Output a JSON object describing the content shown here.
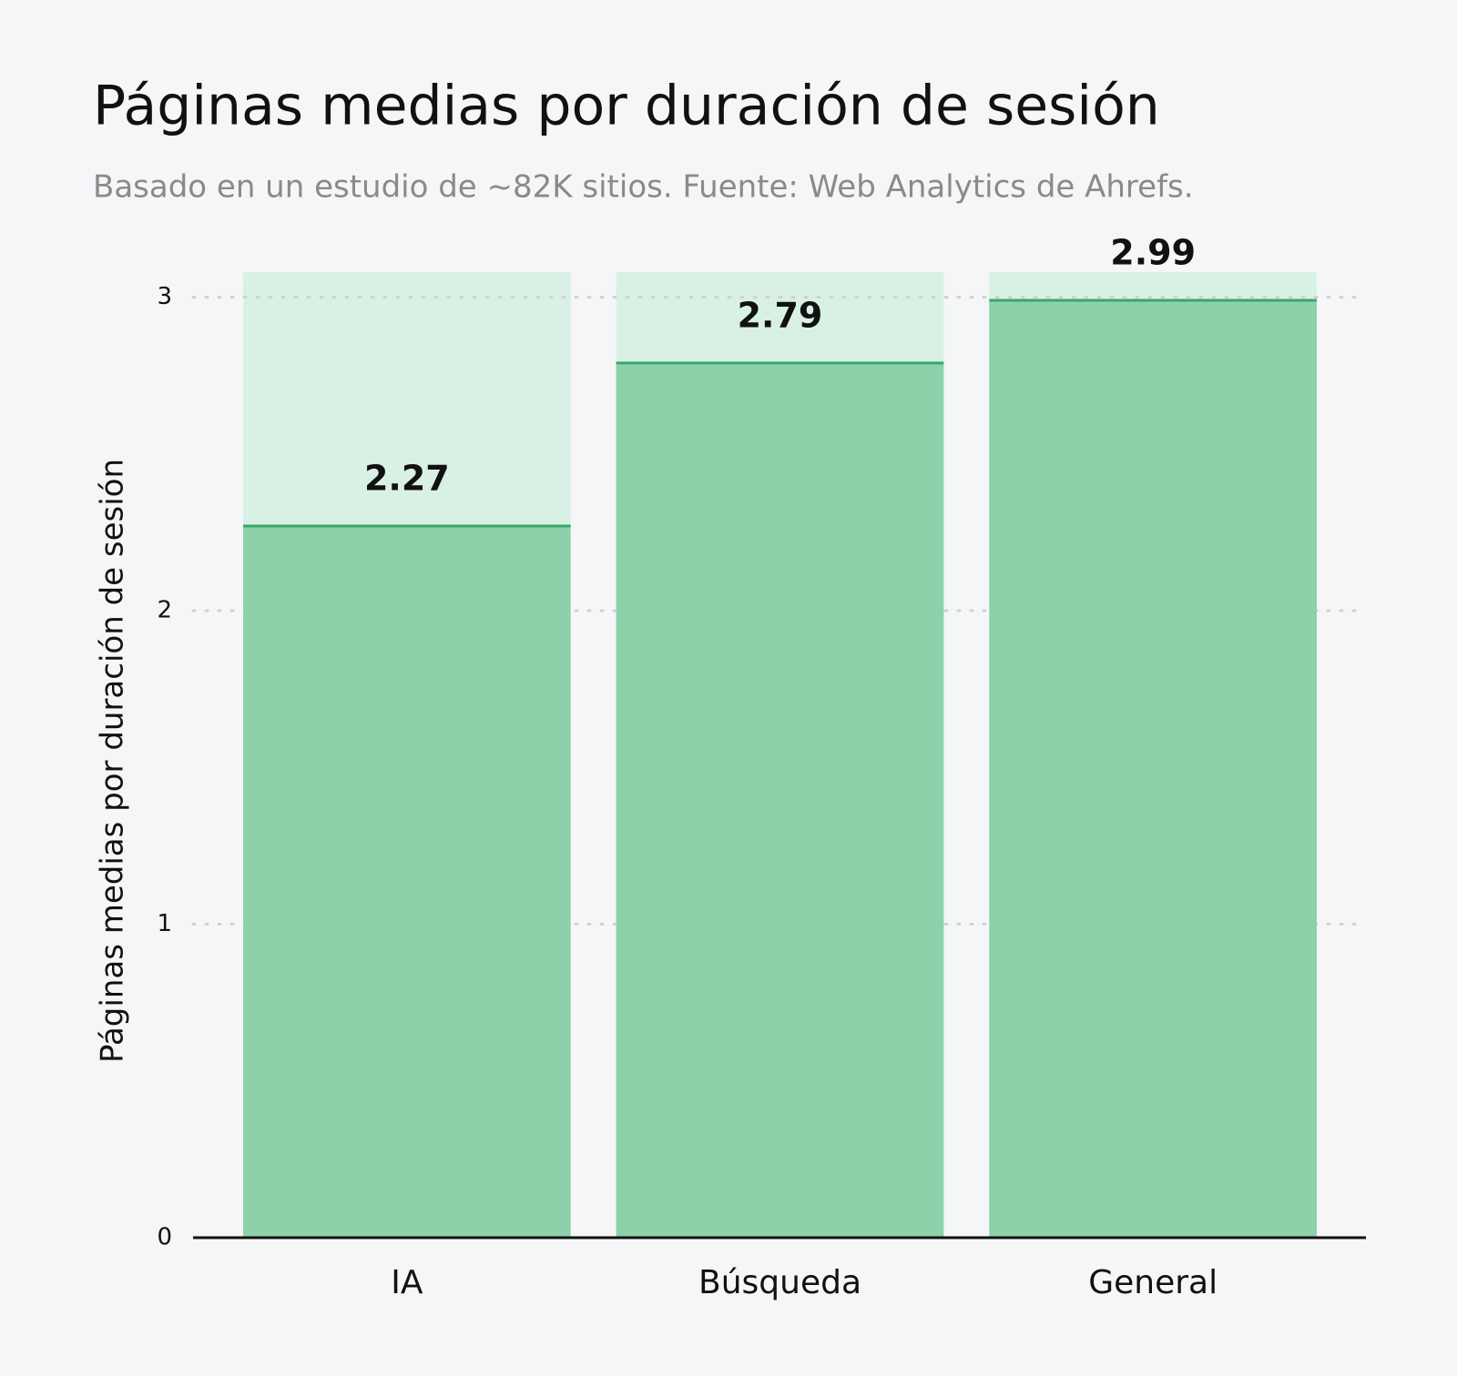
{
  "chart_data": {
    "type": "bar",
    "title": "Páginas medias por duración de sesión",
    "subtitle": "Basado en un estudio de ~82K sitios. Fuente: Web Analytics de Ahrefs.",
    "y_label": "Páginas medias por duración de sesión",
    "categories": [
      "IA",
      "Búsqueda",
      "General"
    ],
    "values": [
      2.27,
      2.79,
      2.99
    ],
    "color": "#8dd1aa",
    "ylim": [
      0,
      3.08
    ],
    "yticks": [
      0,
      1,
      2,
      3
    ],
    "grid": true
  }
}
